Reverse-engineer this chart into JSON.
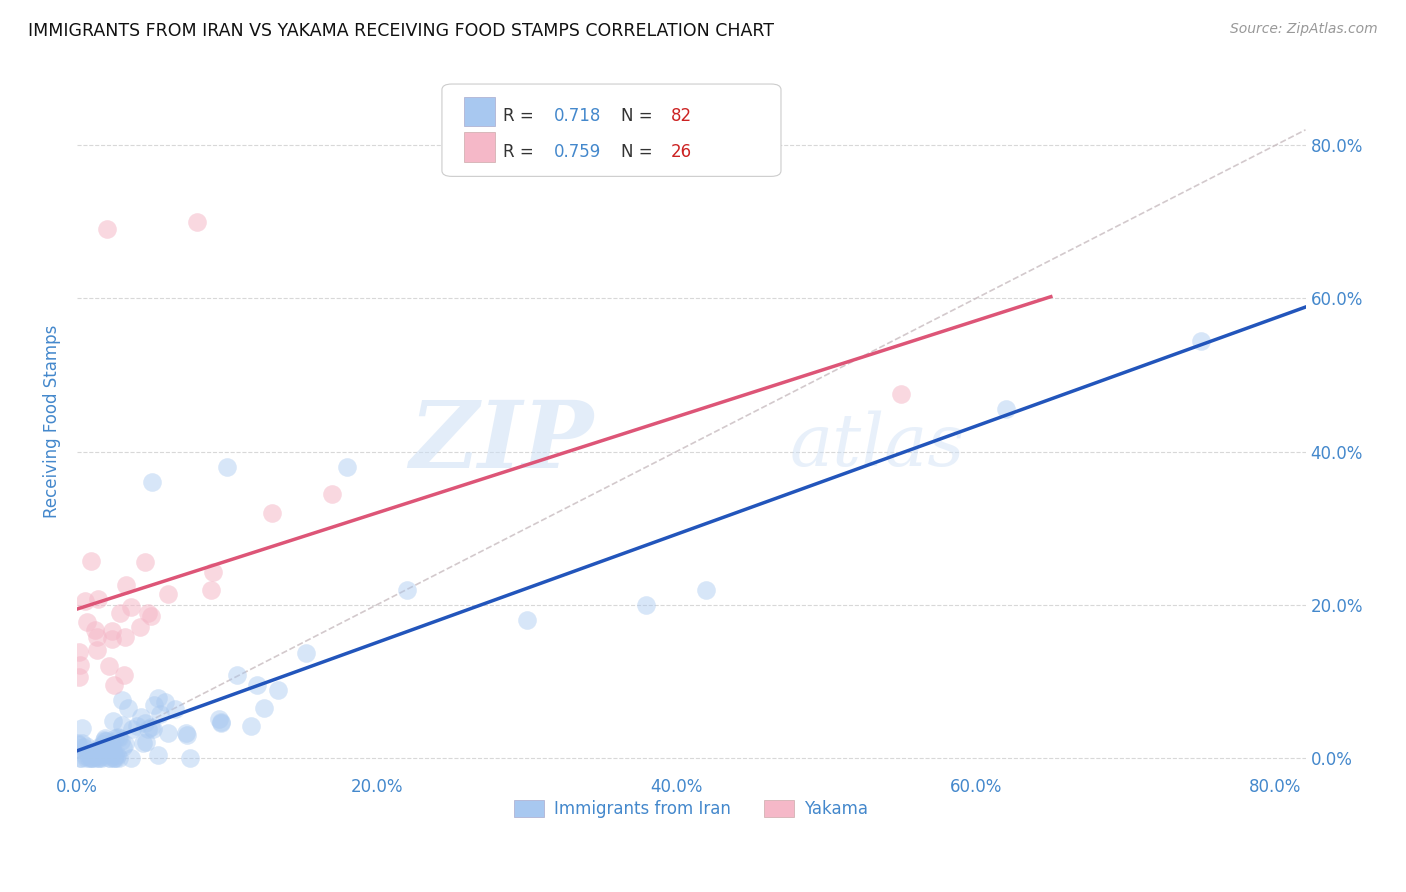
{
  "title": "IMMIGRANTS FROM IRAN VS YAKAMA RECEIVING FOOD STAMPS CORRELATION CHART",
  "source": "Source: ZipAtlas.com",
  "ylabel": "Receiving Food Stamps",
  "xlim": [
    0.0,
    0.82
  ],
  "ylim": [
    -0.02,
    0.9
  ],
  "xticks": [
    0.0,
    0.2,
    0.4,
    0.6,
    0.8
  ],
  "yticks": [
    0.0,
    0.2,
    0.4,
    0.6,
    0.8
  ],
  "xtick_labels": [
    "0.0%",
    "20.0%",
    "40.0%",
    "60.0%",
    "80.0%"
  ],
  "ytick_labels": [
    "0.0%",
    "20.0%",
    "40.0%",
    "60.0%",
    "80.0%"
  ],
  "series1_color": "#a8c8f0",
  "series2_color": "#f5b8c8",
  "series1_line_color": "#2255bb",
  "series2_line_color": "#dd5577",
  "diagonal_line_color": "#c8bcc0",
  "series1_R": 0.718,
  "series1_N": 82,
  "series2_R": 0.759,
  "series2_N": 26,
  "legend1_label": "Immigrants from Iran",
  "legend2_label": "Yakama",
  "watermark_zip": "ZIP",
  "watermark_atlas": "atlas",
  "background_color": "#ffffff",
  "grid_color": "#d8d8d8",
  "title_color": "#111111",
  "axis_tick_color": "#4488cc",
  "legend_R_color": "#4488cc",
  "legend_N_color": "#cc2222",
  "legend_text_color": "#333333"
}
